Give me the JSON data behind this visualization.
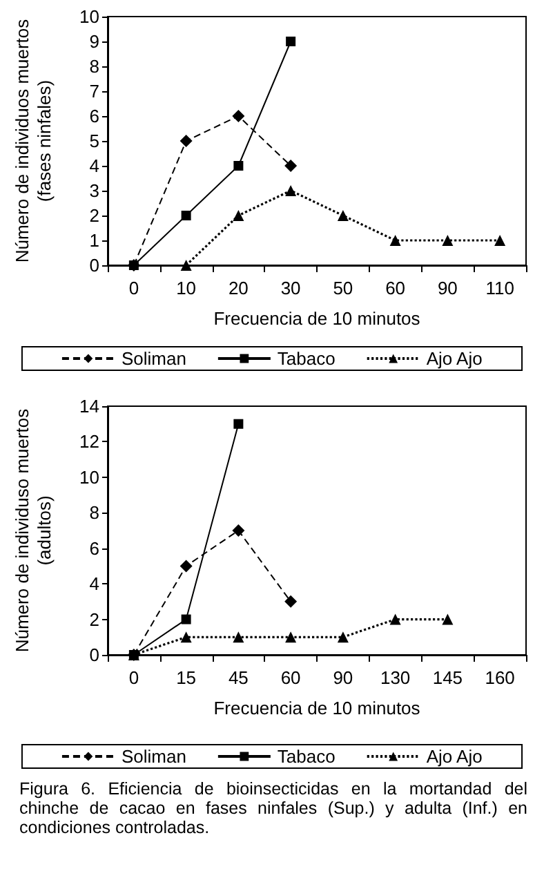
{
  "chart_data": [
    {
      "type": "line",
      "xlabel": "Frecuencia de 10 minutos",
      "ylabel": "Número de individuos muertos\n(fases ninfales)",
      "categories": [
        "0",
        "10",
        "20",
        "30",
        "50",
        "60",
        "90",
        "110"
      ],
      "ylim": [
        0,
        10
      ],
      "yticks": [
        0,
        1,
        2,
        3,
        4,
        5,
        6,
        7,
        8,
        9,
        10
      ],
      "grid": false,
      "legend": "bottom",
      "series": [
        {
          "name": "Soliman",
          "color": "#000000",
          "marker": "diamond",
          "line_style": "dashed",
          "values": [
            0,
            5,
            6,
            4,
            null,
            null,
            null,
            null
          ]
        },
        {
          "name": "Tabaco",
          "color": "#000000",
          "marker": "square",
          "line_style": "solid",
          "values": [
            0,
            2,
            4,
            9,
            null,
            null,
            null,
            null
          ]
        },
        {
          "name": "Ajo Ajo",
          "color": "#000000",
          "marker": "triangle",
          "line_style": "dotted",
          "values": [
            null,
            0,
            2,
            3,
            2,
            1,
            1,
            1
          ]
        }
      ]
    },
    {
      "type": "line",
      "xlabel": "Frecuencia de 10 minutos",
      "ylabel": "Número de individuso muertos\n(adultos)",
      "categories": [
        "0",
        "15",
        "45",
        "60",
        "90",
        "130",
        "145",
        "160"
      ],
      "ylim": [
        0,
        14
      ],
      "yticks": [
        0,
        2,
        4,
        6,
        8,
        10,
        12,
        14
      ],
      "grid": false,
      "legend": "bottom",
      "annotations": [
        "Figura 6. Eficiencia de bioinsecticidas en la mortandad del chinche de cacao en fases ninfales (Sup.) y adulta (Inf.) en condiciones controladas."
      ],
      "series": [
        {
          "name": "Soliman",
          "color": "#000000",
          "marker": "diamond",
          "line_style": "dashed",
          "values": [
            0,
            5,
            7,
            3,
            null,
            null,
            null,
            null
          ]
        },
        {
          "name": "Tabaco",
          "color": "#000000",
          "marker": "square",
          "line_style": "solid",
          "values": [
            0,
            2,
            13,
            null,
            null,
            null,
            null,
            null
          ]
        },
        {
          "name": "Ajo Ajo",
          "color": "#000000",
          "marker": "triangle",
          "line_style": "dotted",
          "values": [
            0,
            1,
            1,
            1,
            1,
            2,
            2,
            null
          ]
        }
      ]
    }
  ]
}
